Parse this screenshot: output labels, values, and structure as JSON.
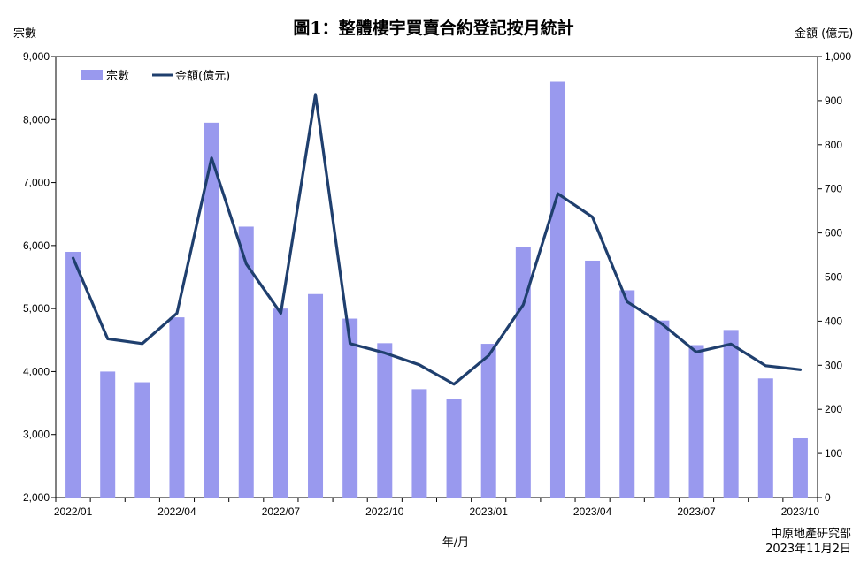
{
  "chart_data": {
    "type": "bar",
    "title": "圖1：整體樓宇買賣合約登記按月統計",
    "xlabel": "年/月",
    "ylabel_left": "宗數",
    "ylabel_right": "金額 (億元)",
    "ylim_left": [
      2000,
      9000
    ],
    "ylim_right": [
      0,
      1000
    ],
    "yticks_left": [
      "2,000",
      "3,000",
      "4,000",
      "5,000",
      "6,000",
      "7,000",
      "8,000",
      "9,000"
    ],
    "yticks_right": [
      "0",
      "100",
      "200",
      "300",
      "400",
      "500",
      "600",
      "700",
      "800",
      "900",
      "1,000"
    ],
    "categories": [
      "2022/01",
      "2022/02",
      "2022/03",
      "2022/04",
      "2022/05",
      "2022/06",
      "2022/07",
      "2022/08",
      "2022/09",
      "2022/10",
      "2022/11",
      "2022/12",
      "2023/01",
      "2023/02",
      "2023/03",
      "2023/04",
      "2023/05",
      "2023/06",
      "2023/07",
      "2023/08",
      "2023/09",
      "2023/10"
    ],
    "xtick_labels": [
      "2022/01",
      "2022/04",
      "2022/07",
      "2022/10",
      "2023/01",
      "2023/04",
      "2023/07",
      "2023/10"
    ],
    "series": [
      {
        "name": "宗數",
        "type": "bar",
        "axis": "left",
        "color": "#9999ee",
        "values": [
          5900,
          4000,
          3830,
          4860,
          7950,
          6300,
          5000,
          5230,
          4840,
          4450,
          3720,
          3570,
          4440,
          5980,
          8600,
          5760,
          5290,
          4810,
          4420,
          4660,
          3890,
          2940
        ]
      },
      {
        "name": "金額(億元)",
        "type": "line",
        "axis": "right",
        "color": "#1f3f6e",
        "values": [
          543,
          360,
          349,
          418,
          770,
          530,
          418,
          914,
          349,
          328,
          301,
          257,
          322,
          437,
          689,
          636,
          444,
          394,
          330,
          348,
          299,
          290
        ]
      }
    ],
    "legend": "top-left",
    "grid": false
  },
  "source": {
    "line1": "中原地產研究部",
    "line2": "2023年11月2日"
  }
}
